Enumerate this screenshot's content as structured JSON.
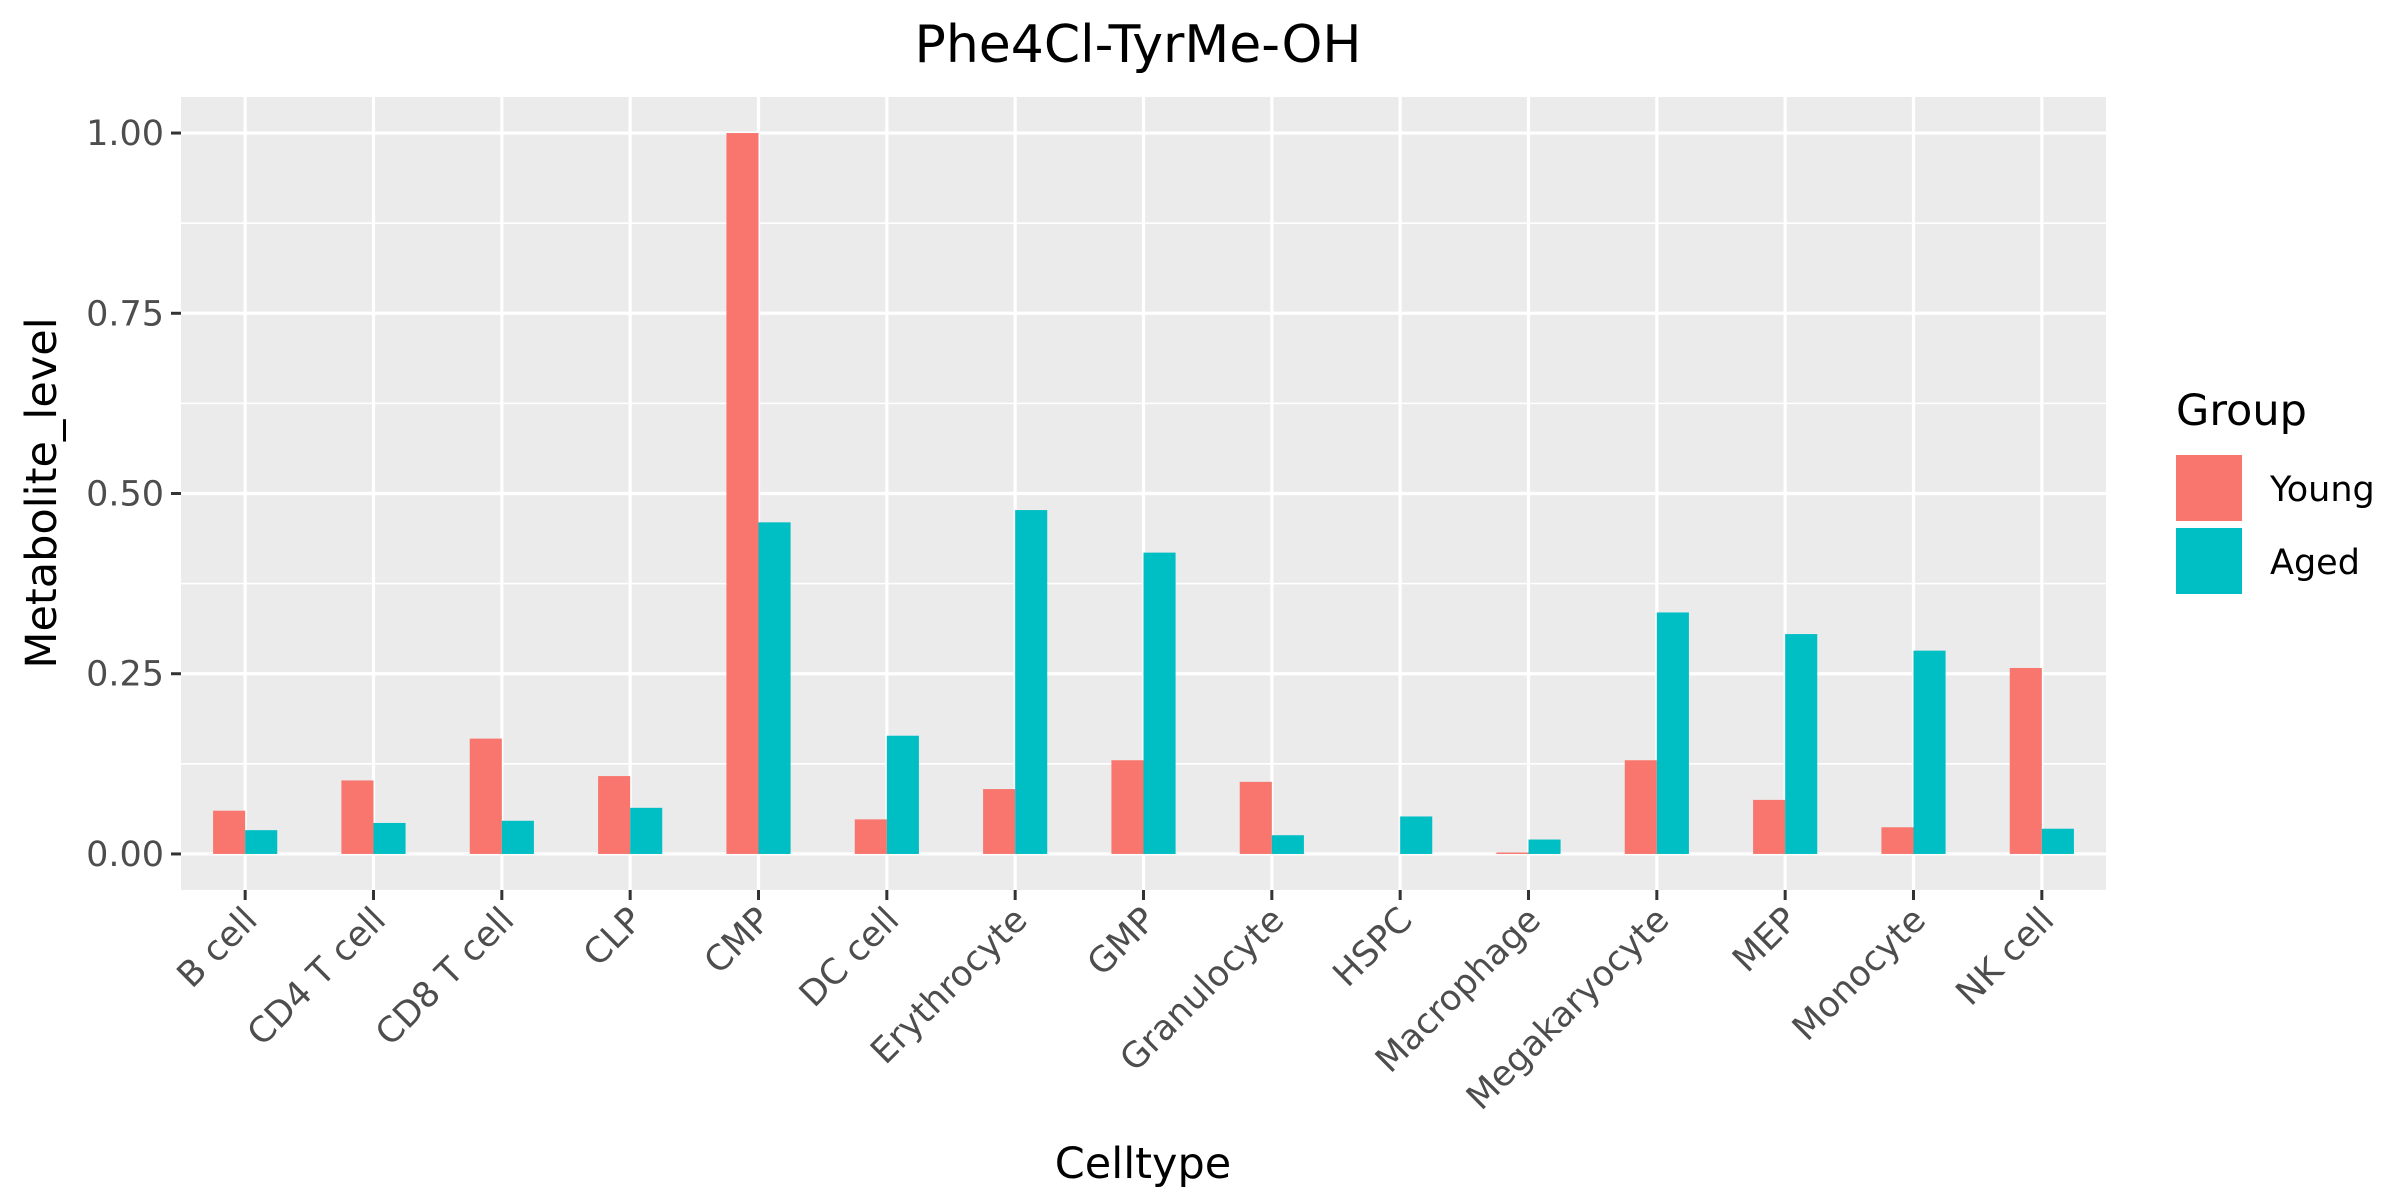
{
  "chart_data": {
    "type": "bar",
    "title": "Phe4Cl-TyrMe-OH",
    "xlabel": "Celltype",
    "ylabel": "Metabolite_level",
    "categories": [
      "B cell",
      "CD4 T cell",
      "CD8 T cell",
      "CLP",
      "CMP",
      "DC cell",
      "Erythrocyte",
      "GMP",
      "Granulocyte",
      "HSPC",
      "Macrophage",
      "Megakaryocyte",
      "MEP",
      "Monocyte",
      "NK cell"
    ],
    "series": [
      {
        "name": "Young",
        "color": "#F8766D",
        "values": [
          0.06,
          0.102,
          0.16,
          0.108,
          1.0,
          0.048,
          0.09,
          0.13,
          0.1,
          0.0,
          0.002,
          0.13,
          0.075,
          0.037,
          0.258
        ]
      },
      {
        "name": "Aged",
        "color": "#00BFC4",
        "values": [
          0.033,
          0.043,
          0.046,
          0.064,
          0.46,
          0.164,
          0.477,
          0.418,
          0.026,
          0.052,
          0.02,
          0.335,
          0.305,
          0.282,
          0.035
        ]
      }
    ],
    "ylim": [
      -0.05,
      1.05
    ],
    "yticks": [
      "0.00",
      "0.25",
      "0.50",
      "0.75",
      "1.00"
    ],
    "grid": true,
    "legend": {
      "title": "Group",
      "position": "right",
      "items": [
        "Young",
        "Aged"
      ]
    },
    "background": "#EBEBEB",
    "grid_color": "#FFFFFF"
  }
}
